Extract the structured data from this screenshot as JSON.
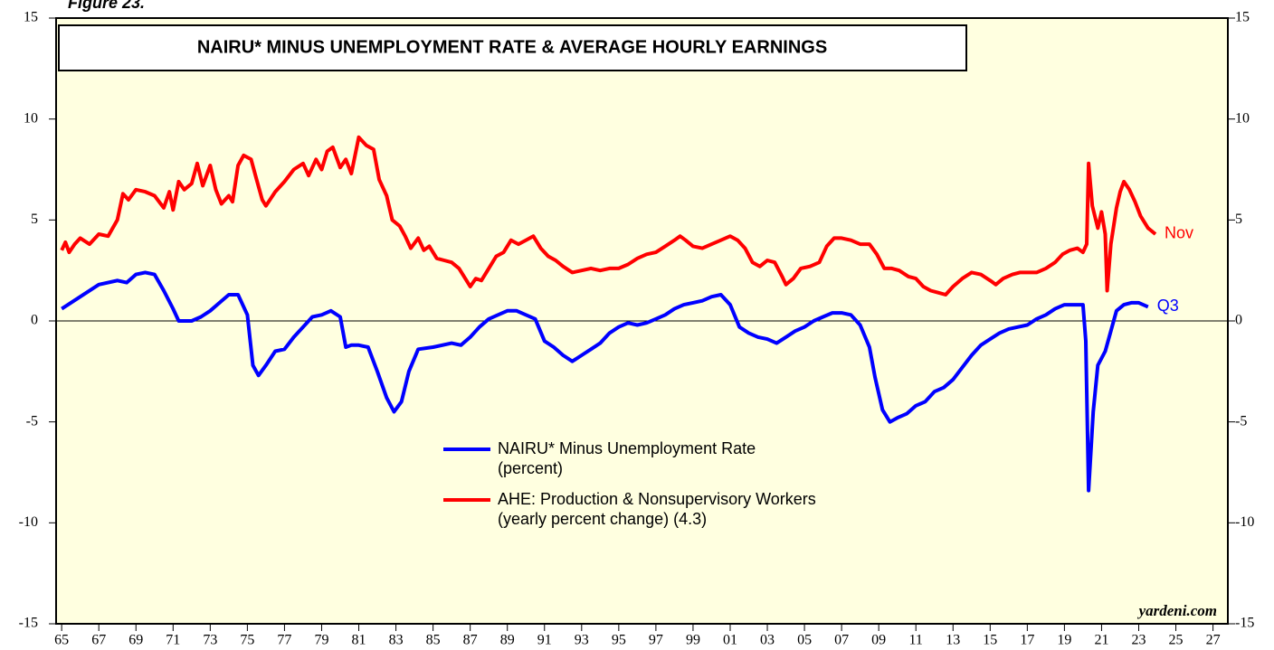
{
  "chart_data": {
    "type": "line",
    "figure_label": "Figure 23.",
    "title": "NAIRU* MINUS UNEMPLOYMENT RATE & AVERAGE HOURLY EARNINGS",
    "credit": "yardeni.com",
    "xlim": [
      1964.7,
      2027.8
    ],
    "xticks": [
      {
        "value": 1965,
        "label": "65"
      },
      {
        "value": 1967,
        "label": "67"
      },
      {
        "value": 1969,
        "label": "69"
      },
      {
        "value": 1971,
        "label": "71"
      },
      {
        "value": 1973,
        "label": "73"
      },
      {
        "value": 1975,
        "label": "75"
      },
      {
        "value": 1977,
        "label": "77"
      },
      {
        "value": 1979,
        "label": "79"
      },
      {
        "value": 1981,
        "label": "81"
      },
      {
        "value": 1983,
        "label": "83"
      },
      {
        "value": 1985,
        "label": "85"
      },
      {
        "value": 1987,
        "label": "87"
      },
      {
        "value": 1989,
        "label": "89"
      },
      {
        "value": 1991,
        "label": "91"
      },
      {
        "value": 1993,
        "label": "93"
      },
      {
        "value": 1995,
        "label": "95"
      },
      {
        "value": 1997,
        "label": "97"
      },
      {
        "value": 1999,
        "label": "99"
      },
      {
        "value": 2001,
        "label": "01"
      },
      {
        "value": 2003,
        "label": "03"
      },
      {
        "value": 2005,
        "label": "05"
      },
      {
        "value": 2007,
        "label": "07"
      },
      {
        "value": 2009,
        "label": "09"
      },
      {
        "value": 2011,
        "label": "11"
      },
      {
        "value": 2013,
        "label": "13"
      },
      {
        "value": 2015,
        "label": "15"
      },
      {
        "value": 2017,
        "label": "17"
      },
      {
        "value": 2019,
        "label": "19"
      },
      {
        "value": 2021,
        "label": "21"
      },
      {
        "value": 2023,
        "label": "23"
      },
      {
        "value": 2025,
        "label": "25"
      },
      {
        "value": 2027,
        "label": "27"
      }
    ],
    "ylim": [
      -15,
      15
    ],
    "yticks": [
      15,
      10,
      5,
      0,
      -5,
      -10,
      -15
    ],
    "y2lim": [
      -15,
      15
    ],
    "y2ticks": [
      15,
      10,
      5,
      0,
      -5,
      -10,
      -15
    ],
    "hline": 0,
    "background": "#ffffe0",
    "series": [
      {
        "name": [
          "NAIRU* Minus Unemployment Rate",
          "(percent)"
        ],
        "color": "#0000ff",
        "end_label": "Q3",
        "x": [
          1965.0,
          1966,
          1967,
          1968,
          1968.5,
          1969,
          1969.5,
          1970,
          1970.5,
          1971,
          1971.3,
          1972,
          1972.5,
          1973,
          1973.5,
          1974,
          1974.5,
          1975,
          1975.3,
          1975.6,
          1976,
          1976.5,
          1977,
          1977.5,
          1978,
          1978.5,
          1979,
          1979.5,
          1980,
          1980.3,
          1980.6,
          1981,
          1981.5,
          1982,
          1982.5,
          1982.9,
          1983.3,
          1983.7,
          1984.2,
          1985,
          1986,
          1986.5,
          1987,
          1987.5,
          1988,
          1988.5,
          1989,
          1989.5,
          1990,
          1990.5,
          1991,
          1991.5,
          1992,
          1992.5,
          1993,
          1993.5,
          1994,
          1994.5,
          1995,
          1995.5,
          1996,
          1996.5,
          1997,
          1997.5,
          1998,
          1998.5,
          1999,
          1999.5,
          2000,
          2000.5,
          2001,
          2001.5,
          2002,
          2002.5,
          2003,
          2003.5,
          2004,
          2004.5,
          2005,
          2005.5,
          2006,
          2006.5,
          2007,
          2007.5,
          2008,
          2008.5,
          2008.8,
          2009.2,
          2009.6,
          2010,
          2010.5,
          2011,
          2011.5,
          2012,
          2012.5,
          2013,
          2013.5,
          2014,
          2014.5,
          2015,
          2015.5,
          2016,
          2016.5,
          2017,
          2017.5,
          2018,
          2018.5,
          2019,
          2019.5,
          2020,
          2020.15,
          2020.3,
          2020.55,
          2020.8,
          2021.2,
          2021.5,
          2021.8,
          2022.2,
          2022.6,
          2023,
          2023.5
        ],
        "values": [
          0.6,
          1.2,
          1.8,
          2.0,
          1.9,
          2.3,
          2.4,
          2.3,
          1.5,
          0.6,
          0.0,
          0.0,
          0.2,
          0.5,
          0.9,
          1.3,
          1.3,
          0.3,
          -2.2,
          -2.7,
          -2.2,
          -1.5,
          -1.4,
          -0.8,
          -0.3,
          0.2,
          0.3,
          0.5,
          0.2,
          -1.3,
          -1.2,
          -1.2,
          -1.3,
          -2.5,
          -3.8,
          -4.5,
          -4.0,
          -2.5,
          -1.4,
          -1.3,
          -1.1,
          -1.2,
          -0.8,
          -0.3,
          0.1,
          0.3,
          0.5,
          0.5,
          0.3,
          0.1,
          -1.0,
          -1.3,
          -1.7,
          -2.0,
          -1.7,
          -1.4,
          -1.1,
          -0.6,
          -0.3,
          -0.1,
          -0.2,
          -0.1,
          0.1,
          0.3,
          0.6,
          0.8,
          0.9,
          1.0,
          1.2,
          1.3,
          0.8,
          -0.3,
          -0.6,
          -0.8,
          -0.9,
          -1.1,
          -0.8,
          -0.5,
          -0.3,
          0.0,
          0.2,
          0.4,
          0.4,
          0.3,
          -0.2,
          -1.3,
          -2.8,
          -4.4,
          -5.0,
          -4.8,
          -4.6,
          -4.2,
          -4.0,
          -3.5,
          -3.3,
          -2.9,
          -2.3,
          -1.7,
          -1.2,
          -0.9,
          -0.6,
          -0.4,
          -0.3,
          -0.2,
          0.1,
          0.3,
          0.6,
          0.8,
          0.8,
          0.8,
          -1,
          -8.4,
          -4.5,
          -2.2,
          -1.5,
          -0.5,
          0.5,
          0.8,
          0.9,
          0.9,
          0.7
        ]
      },
      {
        "name": [
          "AHE: Production & Nonsupervisory Workers",
          "(yearly percent change) (4.3)"
        ],
        "color": "#ff0000",
        "end_label": "Nov",
        "x": [
          1965.0,
          1965.2,
          1965.4,
          1965.7,
          1966,
          1966.5,
          1967,
          1967.5,
          1968,
          1968.3,
          1968.6,
          1969,
          1969.5,
          1970,
          1970.5,
          1970.8,
          1971,
          1971.3,
          1971.6,
          1972,
          1972.3,
          1972.6,
          1973,
          1973.3,
          1973.6,
          1974,
          1974.2,
          1974.5,
          1974.8,
          1975.2,
          1975.5,
          1975.8,
          1976,
          1976.5,
          1977,
          1977.5,
          1978,
          1978.3,
          1978.7,
          1979,
          1979.3,
          1979.6,
          1980,
          1980.3,
          1980.6,
          1981,
          1981.4,
          1981.8,
          1982.1,
          1982.5,
          1982.8,
          1983.2,
          1983.5,
          1983.8,
          1984.2,
          1984.5,
          1984.8,
          1985.2,
          1985.6,
          1986,
          1986.4,
          1986.8,
          1987,
          1987.3,
          1987.6,
          1988,
          1988.4,
          1988.8,
          1989.2,
          1989.6,
          1990,
          1990.4,
          1990.8,
          1991.2,
          1991.6,
          1992,
          1992.5,
          1993,
          1993.5,
          1994,
          1994.5,
          1995,
          1995.5,
          1996,
          1996.5,
          1997,
          1997.5,
          1998,
          1998.3,
          1998.6,
          1999,
          1999.5,
          2000,
          2000.5,
          2001,
          2001.4,
          2001.8,
          2002.2,
          2002.6,
          2003,
          2003.4,
          2003.8,
          2004,
          2004.4,
          2004.8,
          2005.3,
          2005.8,
          2006.2,
          2006.6,
          2007,
          2007.5,
          2008,
          2008.5,
          2008.9,
          2009.3,
          2009.7,
          2010.1,
          2010.6,
          2011,
          2011.4,
          2011.8,
          2012.2,
          2012.6,
          2013,
          2013.5,
          2014,
          2014.5,
          2015,
          2015.3,
          2015.7,
          2016.2,
          2016.6,
          2017,
          2017.5,
          2018,
          2018.5,
          2018.9,
          2019.3,
          2019.7,
          2020.0,
          2020.2,
          2020.3,
          2020.5,
          2020.8,
          2021.0,
          2021.2,
          2021.3,
          2021.5,
          2021.8,
          2022.0,
          2022.2,
          2022.5,
          2022.8,
          2023.1,
          2023.5,
          2023.9
        ],
        "values": [
          3.5,
          3.9,
          3.4,
          3.8,
          4.1,
          3.8,
          4.3,
          4.2,
          5.0,
          6.3,
          6.0,
          6.5,
          6.4,
          6.2,
          5.6,
          6.4,
          5.5,
          6.9,
          6.5,
          6.8,
          7.8,
          6.7,
          7.7,
          6.5,
          5.8,
          6.2,
          5.9,
          7.7,
          8.2,
          8.0,
          7.0,
          6.0,
          5.7,
          6.4,
          6.9,
          7.5,
          7.8,
          7.2,
          8.0,
          7.5,
          8.4,
          8.6,
          7.6,
          8.0,
          7.3,
          9.1,
          8.7,
          8.5,
          7.0,
          6.2,
          5.0,
          4.7,
          4.2,
          3.6,
          4.1,
          3.5,
          3.7,
          3.1,
          3.0,
          2.9,
          2.6,
          2.0,
          1.7,
          2.1,
          2.0,
          2.6,
          3.2,
          3.4,
          4.0,
          3.8,
          4.0,
          4.2,
          3.6,
          3.2,
          3.0,
          2.7,
          2.4,
          2.5,
          2.6,
          2.5,
          2.6,
          2.6,
          2.8,
          3.1,
          3.3,
          3.4,
          3.7,
          4.0,
          4.2,
          4.0,
          3.7,
          3.6,
          3.8,
          4.0,
          4.2,
          4.0,
          3.6,
          2.9,
          2.7,
          3.0,
          2.9,
          2.2,
          1.8,
          2.1,
          2.6,
          2.7,
          2.9,
          3.7,
          4.1,
          4.1,
          4.0,
          3.8,
          3.8,
          3.3,
          2.6,
          2.6,
          2.5,
          2.2,
          2.1,
          1.7,
          1.5,
          1.4,
          1.3,
          1.7,
          2.1,
          2.4,
          2.3,
          2.0,
          1.8,
          2.1,
          2.3,
          2.4,
          2.4,
          2.4,
          2.6,
          2.9,
          3.3,
          3.5,
          3.6,
          3.4,
          3.8,
          7.8,
          5.7,
          4.6,
          5.4,
          4.3,
          1.5,
          3.8,
          5.6,
          6.4,
          6.9,
          6.5,
          5.9,
          5.2,
          4.6,
          4.3
        ]
      }
    ]
  }
}
